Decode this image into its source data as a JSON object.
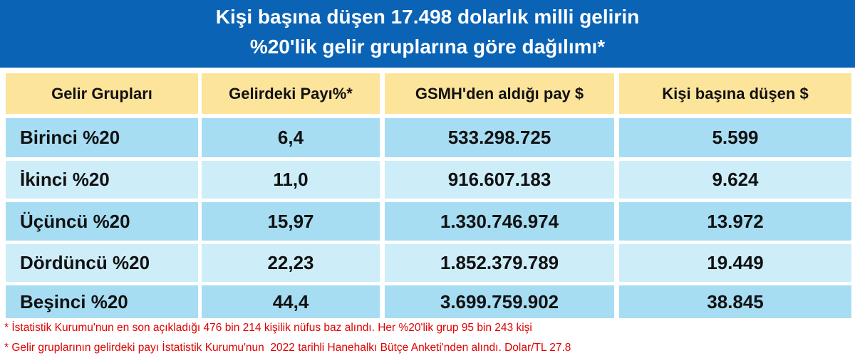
{
  "header": {
    "title_lines": [
      "Kişi başına düşen 17.498 dolarlık milli gelirin",
      "%20'lik gelir gruplarına göre dağılımı*"
    ]
  },
  "table": {
    "columns": [
      "Gelir Grupları",
      "Gelirdeki Payı%*",
      "GSMH'den aldığı pay $",
      "Kişi başına düşen $"
    ],
    "rows": [
      [
        "Birinci %20",
        "6,4",
        "533.298.725",
        "5.599"
      ],
      [
        "İkinci %20",
        "11,0",
        "916.607.183",
        "9.624"
      ],
      [
        "Üçüncü %20",
        "15,97",
        "1.330.746.974",
        "13.972"
      ],
      [
        "Dördüncü %20",
        "22,23",
        "1.852.379.789",
        "19.449"
      ],
      [
        "Beşinci %20",
        "44,4",
        "3.699.759.902",
        "38.845"
      ]
    ]
  },
  "footnotes": [
    "* İstatistik Kurumu'nun en son açıkladığı 476 bin 214 kişilik nüfus baz alındı. Her %20'lik grup 95 bin 243 kişi",
    "* Gelir gruplarının gelirdeki payı İstatistik Kurumu'nun  2022 tarihli Hanehalkı Bütçe Anketi'nden alındı. Dolar/TL 27.8"
  ]
}
